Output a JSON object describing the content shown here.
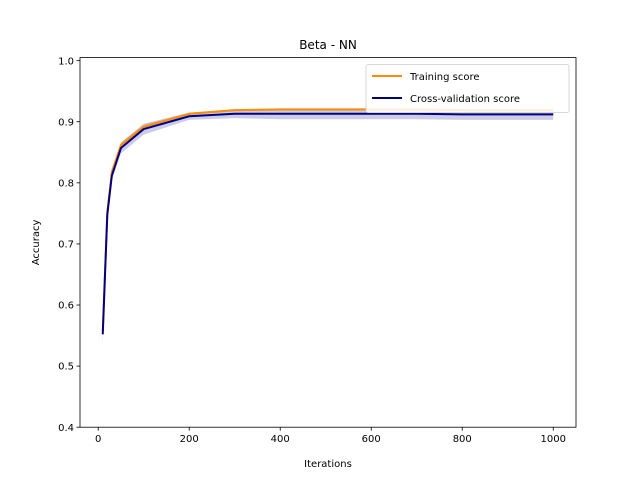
{
  "chart_data": {
    "type": "line",
    "title": "Beta - NN",
    "xlabel": "Iterations",
    "ylabel": "Accuracy",
    "xlim": [
      -40,
      1050
    ],
    "ylim": [
      0.4,
      1.005
    ],
    "xticks": [
      0,
      200,
      400,
      600,
      800,
      1000
    ],
    "yticks": [
      0.4,
      0.5,
      0.6,
      0.7,
      0.8,
      0.9,
      1.0
    ],
    "grid": false,
    "legend_position": "top-right",
    "series": [
      {
        "name": "Training score",
        "color": "#ff8c00",
        "band_color": "#ff8c00",
        "x": [
          10,
          20,
          30,
          50,
          100,
          200,
          300,
          400,
          500,
          600,
          700,
          800,
          900,
          1000
        ],
        "y": [
          0.557,
          0.752,
          0.818,
          0.862,
          0.892,
          0.913,
          0.919,
          0.92,
          0.92,
          0.92,
          0.92,
          0.919,
          0.919,
          0.919
        ],
        "std": [
          0.01,
          0.006,
          0.004,
          0.004,
          0.003,
          0.002,
          0.002,
          0.002,
          0.002,
          0.002,
          0.002,
          0.002,
          0.002,
          0.002
        ]
      },
      {
        "name": "Cross-validation score",
        "color": "#000080",
        "band_color": "#000080",
        "x": [
          10,
          20,
          30,
          50,
          100,
          200,
          300,
          400,
          500,
          600,
          700,
          800,
          900,
          1000
        ],
        "y": [
          0.552,
          0.748,
          0.812,
          0.857,
          0.888,
          0.909,
          0.913,
          0.913,
          0.913,
          0.913,
          0.913,
          0.912,
          0.912,
          0.912
        ],
        "std": [
          0.016,
          0.01,
          0.008,
          0.009,
          0.009,
          0.006,
          0.007,
          0.009,
          0.009,
          0.009,
          0.009,
          0.009,
          0.009,
          0.009
        ]
      }
    ]
  }
}
